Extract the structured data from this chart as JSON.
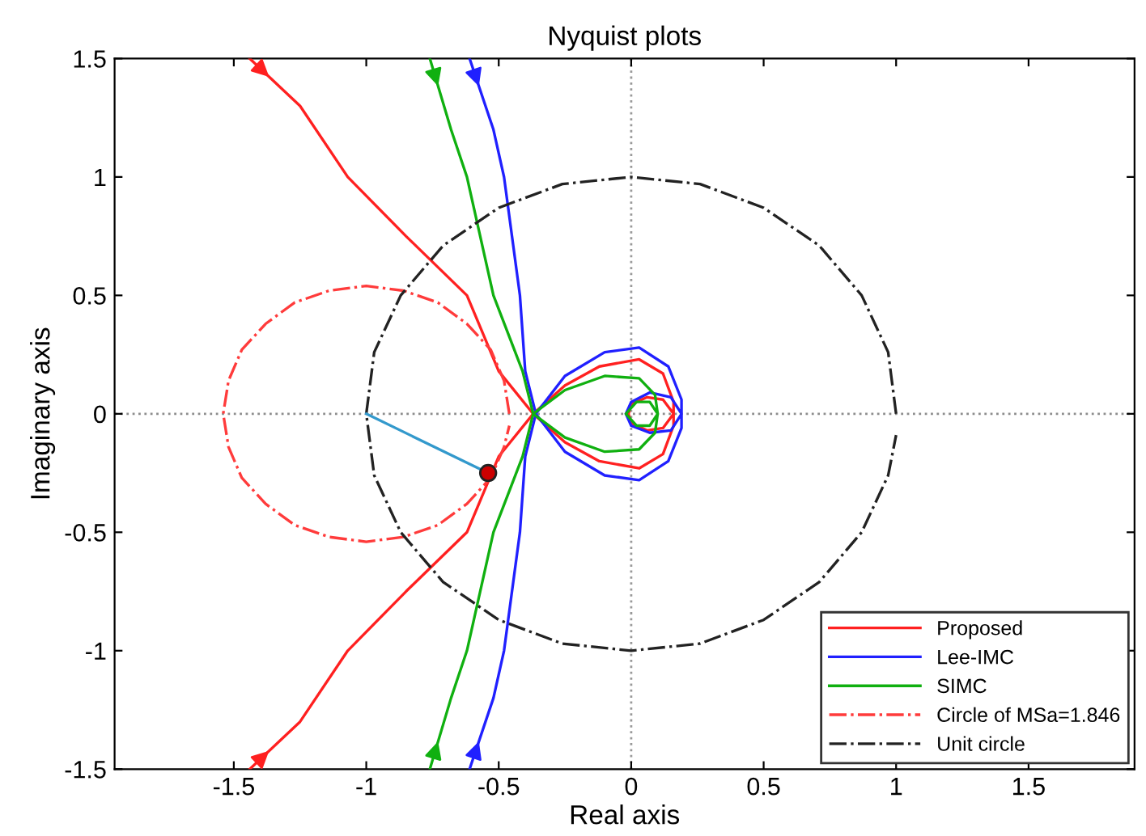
{
  "chart_data": {
    "type": "line",
    "title": "Nyquist plots",
    "xlabel": "Real axis",
    "ylabel": "Imaginary axis",
    "xlim": [
      -1.95,
      1.9
    ],
    "ylim": [
      -1.5,
      1.5
    ],
    "xticks": [
      -1.5,
      -1,
      -0.5,
      0,
      0.5,
      1,
      1.5
    ],
    "yticks": [
      -1.5,
      -1,
      -0.5,
      0,
      0.5,
      1,
      1.5
    ],
    "grid": false,
    "legend": "bottom right",
    "ref_lines": [
      {
        "axis": "x",
        "value": 0,
        "color": "#999999",
        "line_style": "dotted"
      },
      {
        "axis": "y",
        "value": 0,
        "color": "#8c8c8c",
        "line_style": "dotted"
      }
    ],
    "series": [
      {
        "name": "Proposed",
        "color": "#ff2020",
        "line_style": "solid",
        "x": [
          -1.44,
          -1.25,
          -1.07,
          -0.85,
          -0.62,
          -0.5,
          -0.37,
          -0.25,
          -0.12,
          0.03,
          0.12,
          0.16,
          0.16,
          0.12,
          0.06,
          0.0,
          -0.01,
          0.0,
          0.06,
          0.12,
          0.16,
          0.16,
          0.12,
          0.03,
          -0.12,
          -0.25,
          -0.37,
          -0.5,
          -0.62,
          -0.85,
          -1.07,
          -1.25,
          -1.44
        ],
        "values": [
          1.5,
          1.3,
          1.0,
          0.75,
          0.5,
          0.18,
          0,
          -0.12,
          -0.2,
          -0.23,
          -0.17,
          -0.05,
          0,
          -0.06,
          -0.07,
          -0.04,
          0,
          0.04,
          0.07,
          0.06,
          0,
          0.05,
          0.17,
          0.23,
          0.2,
          0.12,
          0,
          -0.18,
          -0.5,
          -0.75,
          -1.0,
          -1.3,
          -1.5
        ]
      },
      {
        "name": "Lee-IMC",
        "color": "#2020ff",
        "line_style": "solid",
        "x": [
          -0.61,
          -0.52,
          -0.48,
          -0.42,
          -0.4,
          -0.36,
          -0.25,
          -0.1,
          0.03,
          0.14,
          0.19,
          0.19,
          0.15,
          0.07,
          0.0,
          -0.02,
          0.0,
          0.07,
          0.15,
          0.19,
          0.19,
          0.14,
          0.03,
          -0.1,
          -0.25,
          -0.36,
          -0.4,
          -0.42,
          -0.48,
          -0.52,
          -0.61
        ],
        "values": [
          1.5,
          1.2,
          1.0,
          0.5,
          0.18,
          0,
          -0.16,
          -0.26,
          -0.28,
          -0.2,
          -0.06,
          0,
          -0.07,
          -0.08,
          -0.05,
          0,
          0.05,
          0.09,
          0.07,
          0,
          0.06,
          0.2,
          0.28,
          0.26,
          0.16,
          0,
          -0.18,
          -0.5,
          -1.0,
          -1.2,
          -1.5
        ]
      },
      {
        "name": "SIMC",
        "color": "#10b010",
        "line_style": "solid",
        "x": [
          -0.76,
          -0.68,
          -0.62,
          -0.52,
          -0.41,
          -0.37,
          -0.25,
          -0.1,
          0.03,
          0.09,
          0.1,
          0.07,
          0.02,
          -0.02,
          0.02,
          0.07,
          0.1,
          0.09,
          0.03,
          -0.1,
          -0.25,
          -0.37,
          -0.41,
          -0.52,
          -0.62,
          -0.68,
          -0.76
        ],
        "values": [
          1.5,
          1.2,
          1.0,
          0.5,
          0.18,
          0,
          -0.1,
          -0.16,
          -0.15,
          -0.08,
          0,
          -0.05,
          -0.05,
          0,
          0.05,
          0.05,
          0,
          0.08,
          0.15,
          0.16,
          0.1,
          0,
          -0.18,
          -0.5,
          -1.0,
          -1.2,
          -1.5
        ]
      },
      {
        "name": "Circle of MSa=1.846",
        "color": "#ff3b3b",
        "line_style": "dashdot",
        "x": [
          -0.46,
          -0.48,
          -0.53,
          -0.62,
          -0.73,
          -0.86,
          -1,
          -1.14,
          -1.27,
          -1.38,
          -1.47,
          -1.52,
          -1.54,
          -1.52,
          -1.47,
          -1.38,
          -1.27,
          -1.14,
          -1,
          -0.86,
          -0.73,
          -0.62,
          -0.53,
          -0.48,
          -0.46
        ],
        "values": [
          0,
          0.14,
          0.27,
          0.38,
          0.47,
          0.52,
          0.54,
          0.52,
          0.47,
          0.38,
          0.27,
          0.14,
          0,
          -0.14,
          -0.27,
          -0.38,
          -0.47,
          -0.52,
          -0.54,
          -0.52,
          -0.47,
          -0.38,
          -0.27,
          -0.14,
          -0.05
        ]
      },
      {
        "name": "Unit circle",
        "color": "#222222",
        "line_style": "dashdot",
        "x": [
          1,
          0.97,
          0.87,
          0.71,
          0.5,
          0.26,
          0,
          -0.26,
          -0.5,
          -0.71,
          -0.87,
          -0.97,
          -1,
          -0.97,
          -0.87,
          -0.71,
          -0.5,
          -0.26,
          0,
          0.26,
          0.5,
          0.71,
          0.87,
          0.97,
          1
        ],
        "values": [
          0,
          0.26,
          0.5,
          0.71,
          0.87,
          0.97,
          1,
          0.97,
          0.87,
          0.71,
          0.5,
          0.26,
          0,
          -0.26,
          -0.5,
          -0.71,
          -0.87,
          -0.97,
          -1,
          -0.97,
          -0.87,
          -0.71,
          -0.5,
          -0.26,
          -0.09
        ]
      },
      {
        "color": "#3399cc",
        "line_style": "solid",
        "x": [
          -1,
          -0.54
        ],
        "values": [
          0,
          -0.25
        ]
      },
      {
        "type": "scatter",
        "color": "#cc0000",
        "marker": "circle",
        "x": [
          -0.54
        ],
        "values": [
          -0.25
        ]
      }
    ]
  }
}
